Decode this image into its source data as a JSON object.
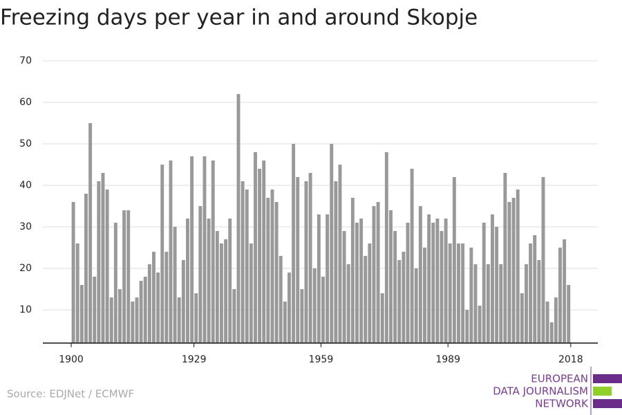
{
  "chart_data": {
    "type": "bar",
    "title": "Freezing days per year in and around Skopje",
    "source": "Source: EDJNet / ECMWF",
    "logo": [
      "EUROPEAN",
      "DATA JOURNALISM",
      "NETWORK"
    ],
    "color": "#999999",
    "grid": true,
    "x": [
      1900,
      1901,
      1902,
      1903,
      1904,
      1905,
      1906,
      1907,
      1908,
      1909,
      1910,
      1911,
      1912,
      1913,
      1914,
      1915,
      1916,
      1917,
      1918,
      1919,
      1920,
      1921,
      1922,
      1923,
      1924,
      1925,
      1926,
      1927,
      1928,
      1929,
      1930,
      1931,
      1932,
      1933,
      1934,
      1935,
      1936,
      1937,
      1938,
      1939,
      1940,
      1941,
      1942,
      1943,
      1944,
      1945,
      1946,
      1947,
      1948,
      1949,
      1950,
      1951,
      1952,
      1953,
      1954,
      1955,
      1956,
      1957,
      1958,
      1959,
      1960,
      1961,
      1962,
      1963,
      1964,
      1965,
      1966,
      1967,
      1968,
      1969,
      1970,
      1971,
      1972,
      1973,
      1974,
      1975,
      1976,
      1977,
      1978,
      1979,
      1980,
      1981,
      1982,
      1983,
      1984,
      1985,
      1986,
      1987,
      1988,
      1989,
      1990,
      1991,
      1992,
      1993,
      1994,
      1995,
      1996,
      1997,
      1998,
      1999,
      2000,
      2001,
      2002,
      2003,
      2004,
      2005,
      2006,
      2007,
      2008,
      2009,
      2010,
      2011,
      2012,
      2013,
      2014,
      2015,
      2016,
      2017
    ],
    "values": [
      36,
      26,
      16,
      38,
      55,
      18,
      41,
      43,
      39,
      13,
      31,
      15,
      34,
      34,
      12,
      13,
      17,
      18,
      21,
      24,
      19,
      45,
      24,
      46,
      30,
      13,
      22,
      32,
      47,
      14,
      35,
      47,
      32,
      46,
      29,
      26,
      27,
      32,
      15,
      62,
      41,
      39,
      26,
      48,
      44,
      46,
      37,
      39,
      36,
      23,
      12,
      19,
      50,
      42,
      15,
      41,
      43,
      20,
      33,
      18,
      33,
      50,
      41,
      45,
      29,
      21,
      37,
      31,
      32,
      23,
      26,
      35,
      36,
      14,
      48,
      34,
      29,
      22,
      24,
      31,
      44,
      20,
      35,
      25,
      33,
      31,
      32,
      29,
      32,
      26,
      42,
      26,
      26,
      10,
      25,
      21,
      11,
      31,
      21,
      33,
      30,
      21,
      43,
      36,
      37,
      39,
      14,
      21,
      26,
      28,
      22,
      42,
      12,
      7,
      13,
      25,
      27,
      16
    ],
    "xlim": [
      1893.3,
      2024.4
    ],
    "xticks": [
      1900,
      1929,
      1959,
      1989,
      2018
    ],
    "ylim": [
      2,
      70
    ],
    "yticks": [
      10,
      20,
      30,
      40,
      50,
      60,
      70
    ]
  }
}
